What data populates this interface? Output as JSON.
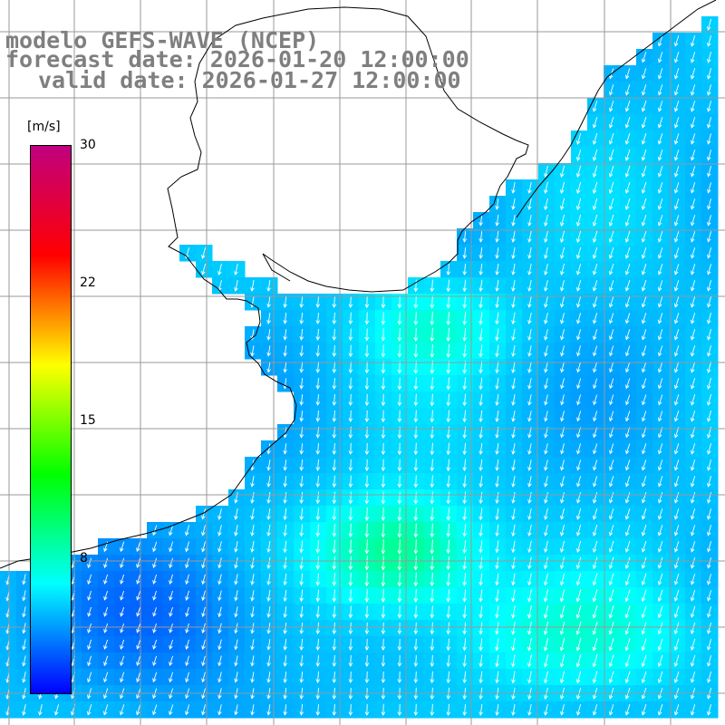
{
  "title": {
    "line1": "modelo GEFS-WAVE (NCEP)",
    "line2": "forecast date: 2026-01-20 12:00:00",
    "line3": "valid date: 2026-01-27 12:00:00"
  },
  "colorbar": {
    "unit": "[m/s]",
    "min": 0,
    "max": 30,
    "labels": [
      "30",
      "22",
      "15",
      "8"
    ],
    "stops": [
      "#0000ff",
      "#00ffff",
      "#00ff00",
      "#ffff00",
      "#ff0000",
      "#c0007f"
    ]
  },
  "colors": {
    "land": "#ffffff",
    "grid": "#999999",
    "coast": "#000000",
    "arrows": "#ffffff",
    "title_text": "#7f7f7f"
  },
  "field": {
    "variable": "wind speed and direction",
    "direction": "predominantly southward, tilted slightly westward",
    "speed_range_ms": [
      2,
      12
    ]
  }
}
